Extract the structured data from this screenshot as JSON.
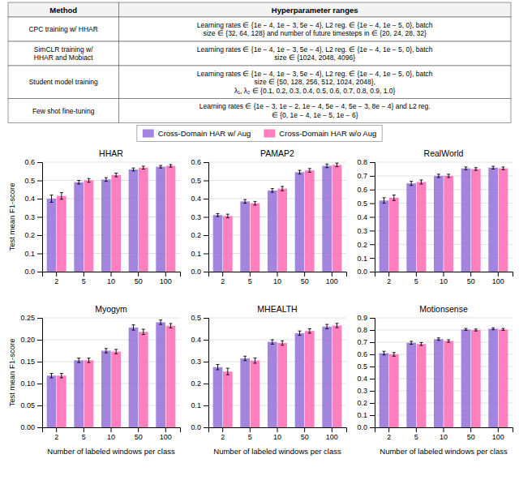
{
  "chart_data": [
    {
      "type": "table",
      "headers": [
        "Method",
        "Hyperparameter ranges"
      ],
      "rows": [
        [
          "CPC training w/ HHAR",
          "Learning rates ∈ {1e − 4, 1e − 3, 5e − 4}, L2 reg. ∈ {1e − 4, 1e − 5, 0}, batch\nsize ∈ {32, 64, 128} and number of future timesteps in ∈ {20, 24, 28, 32}"
        ],
        [
          "SimCLR training w/\nHHAR and Mobiact",
          "Learning rates ∈ {1e − 4, 1e − 3, 5e − 4}, L2 reg. ∈ {1e − 4, 1e − 5, 0}, batch\nsize ∈ {1024, 2048, 4096}"
        ],
        [
          "Student model training",
          "Learning rates ∈ {1e − 4, 1e − 3, 5e − 4}, L2 reg. ∈ {1e − 4, 1e − 5, 0}, batch\nsize ∈ {50, 128, 256, 512, 1024, 2048},\nλ₁, λ₂ ∈ {0.1, 0.2, 0.3, 0.4, 0.5, 0.6, 0.7, 0.8, 0.9, 1.0}"
        ],
        [
          "Few shot fine-tuning",
          "Learning rates ∈ {1e − 3, 1e − 2, 1e − 4, 5e − 4, 5e − 3, 8e − 4} and L2 reg.\n∈ {0, 1e − 4, 1e − 5, 1e − 6}"
        ]
      ]
    },
    {
      "type": "bar",
      "title": "HHAR",
      "ylabel": "Test mean F1-score",
      "categories": [
        "2",
        "5",
        "10",
        "50",
        "100"
      ],
      "series": [
        {
          "name": "Cross-Domain HAR w/ Aug",
          "color": "#9370DB",
          "values": [
            0.4,
            0.49,
            0.505,
            0.56,
            0.575
          ],
          "errors": [
            0.02,
            0.01,
            0.01,
            0.008,
            0.007
          ]
        },
        {
          "name": "Cross-Domain HAR w/o Aug",
          "color": "#FF69B4",
          "values": [
            0.415,
            0.5,
            0.53,
            0.57,
            0.58
          ],
          "errors": [
            0.018,
            0.01,
            0.01,
            0.008,
            0.007
          ]
        }
      ],
      "ylim": [
        0.0,
        0.6
      ],
      "yticks": [
        {
          "value": 0,
          "label": "0.0"
        },
        0.1,
        0.2,
        0.3,
        0.4,
        0.5,
        0.6
      ],
      "grid": true,
      "legend": "top"
    },
    {
      "type": "bar",
      "title": "PAMAP2",
      "categories": [
        "2",
        "5",
        "10",
        "50",
        "100"
      ],
      "series": [
        {
          "name": "Cross-Domain HAR w/ Aug",
          "color": "#9370DB",
          "values": [
            0.31,
            0.385,
            0.445,
            0.545,
            0.58
          ],
          "errors": [
            0.008,
            0.01,
            0.01,
            0.01,
            0.01
          ]
        },
        {
          "name": "Cross-Domain HAR w/o Aug",
          "color": "#FF69B4",
          "values": [
            0.305,
            0.375,
            0.455,
            0.555,
            0.585
          ],
          "errors": [
            0.01,
            0.01,
            0.012,
            0.01,
            0.01
          ]
        }
      ],
      "ylim": [
        0.0,
        0.6
      ],
      "yticks": [
        {
          "value": 0,
          "label": "0.0"
        },
        0.1,
        0.2,
        0.3,
        0.4,
        0.5,
        0.6
      ],
      "grid": true
    },
    {
      "type": "bar",
      "title": "RealWorld",
      "categories": [
        "2",
        "5",
        "10",
        "50",
        "100"
      ],
      "series": [
        {
          "name": "Cross-Domain HAR w/ Aug",
          "color": "#9370DB",
          "values": [
            0.52,
            0.645,
            0.7,
            0.755,
            0.76
          ],
          "errors": [
            0.02,
            0.015,
            0.012,
            0.01,
            0.01
          ]
        },
        {
          "name": "Cross-Domain HAR w/o Aug",
          "color": "#FF69B4",
          "values": [
            0.54,
            0.655,
            0.7,
            0.75,
            0.755
          ],
          "errors": [
            0.02,
            0.015,
            0.012,
            0.01,
            0.01
          ]
        }
      ],
      "ylim": [
        0.0,
        0.8
      ],
      "yticks": [
        {
          "value": 0,
          "label": "0.0"
        },
        0.1,
        0.2,
        0.3,
        0.4,
        0.5,
        0.6,
        0.7,
        0.8
      ],
      "grid": true
    },
    {
      "type": "bar",
      "title": "Myogym",
      "ylabel": "Test mean F1-score",
      "xlabel": "Number of labeled windows per class",
      "categories": [
        "2",
        "5",
        "10",
        "50",
        "100"
      ],
      "series": [
        {
          "name": "Cross-Domain HAR w/ Aug",
          "color": "#9370DB",
          "values": [
            0.118,
            0.153,
            0.175,
            0.228,
            0.24
          ],
          "errors": [
            0.005,
            0.005,
            0.005,
            0.006,
            0.005
          ]
        },
        {
          "name": "Cross-Domain HAR w/o Aug",
          "color": "#FF69B4",
          "values": [
            0.118,
            0.153,
            0.173,
            0.218,
            0.232
          ],
          "errors": [
            0.005,
            0.005,
            0.005,
            0.006,
            0.005
          ]
        }
      ],
      "ylim": [
        0.0,
        0.25
      ],
      "yticks": [
        {
          "value": 0,
          "label": "0.00"
        },
        0.05,
        {
          "value": 0.1,
          "label": "0.10"
        },
        0.15,
        {
          "value": 0.2,
          "label": "0.20"
        },
        0.25
      ],
      "grid": true
    },
    {
      "type": "bar",
      "title": "MHEALTH",
      "xlabel": "Number of labeled windows per class",
      "categories": [
        "2",
        "5",
        "10",
        "50",
        "100"
      ],
      "series": [
        {
          "name": "Cross-Domain HAR w/ Aug",
          "color": "#9370DB",
          "values": [
            0.275,
            0.315,
            0.39,
            0.43,
            0.46
          ],
          "errors": [
            0.012,
            0.01,
            0.01,
            0.01,
            0.01
          ]
        },
        {
          "name": "Cross-Domain HAR w/o Aug",
          "color": "#FF69B4",
          "values": [
            0.255,
            0.305,
            0.385,
            0.44,
            0.465
          ],
          "errors": [
            0.015,
            0.012,
            0.01,
            0.01,
            0.01
          ]
        }
      ],
      "ylim": [
        0.0,
        0.5
      ],
      "yticks": [
        {
          "value": 0,
          "label": "0.0"
        },
        0.1,
        0.2,
        0.3,
        0.4,
        0.5
      ],
      "grid": true
    },
    {
      "type": "bar",
      "title": "Motionsense",
      "xlabel": "Number of labeled windows per class",
      "categories": [
        "2",
        "5",
        "10",
        "50",
        "100"
      ],
      "series": [
        {
          "name": "Cross-Domain HAR w/ Aug",
          "color": "#9370DB",
          "values": [
            0.61,
            0.695,
            0.725,
            0.805,
            0.81
          ],
          "errors": [
            0.015,
            0.012,
            0.01,
            0.008,
            0.008
          ]
        },
        {
          "name": "Cross-Domain HAR w/o Aug",
          "color": "#FF69B4",
          "values": [
            0.6,
            0.685,
            0.71,
            0.8,
            0.805
          ],
          "errors": [
            0.015,
            0.012,
            0.01,
            0.008,
            0.008
          ]
        }
      ],
      "ylim": [
        0.0,
        0.9
      ],
      "yticks": [
        {
          "value": 0,
          "label": "0.0"
        },
        0.1,
        0.2,
        0.3,
        0.4,
        0.5,
        0.6,
        0.7,
        0.8,
        0.9
      ],
      "grid": true
    }
  ]
}
